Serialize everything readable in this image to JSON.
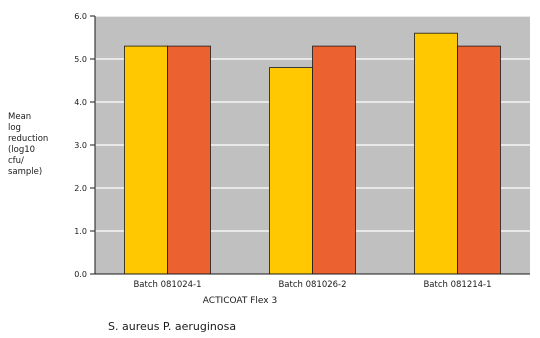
{
  "chart_data": {
    "type": "bar",
    "title": "",
    "xlabel": "ACTICOAT Flex 3",
    "ylabel_lines": [
      "Mean",
      "log",
      "reduction",
      "(log10",
      "cfu/",
      "sample)"
    ],
    "categories": [
      "Batch 081024-1",
      "Batch 081026-2",
      "Batch 081214-1"
    ],
    "series": [
      {
        "name": "S. aureus",
        "values": [
          5.3,
          4.8,
          5.6
        ],
        "color": "#ffc800"
      },
      {
        "name": "P. aeruginosa",
        "values": [
          5.3,
          5.3,
          5.3
        ],
        "color": "#ec6130"
      }
    ],
    "ylim": [
      0,
      6
    ],
    "yticks": [
      "0.0",
      "1.0",
      "2.0",
      "3.0",
      "4.0",
      "5.0",
      "6.0"
    ],
    "grid": true,
    "plot_background": "#c0c0c0",
    "legend_text": "S. aureus P. aeruginosa",
    "legend_placement": "bottom-left"
  }
}
